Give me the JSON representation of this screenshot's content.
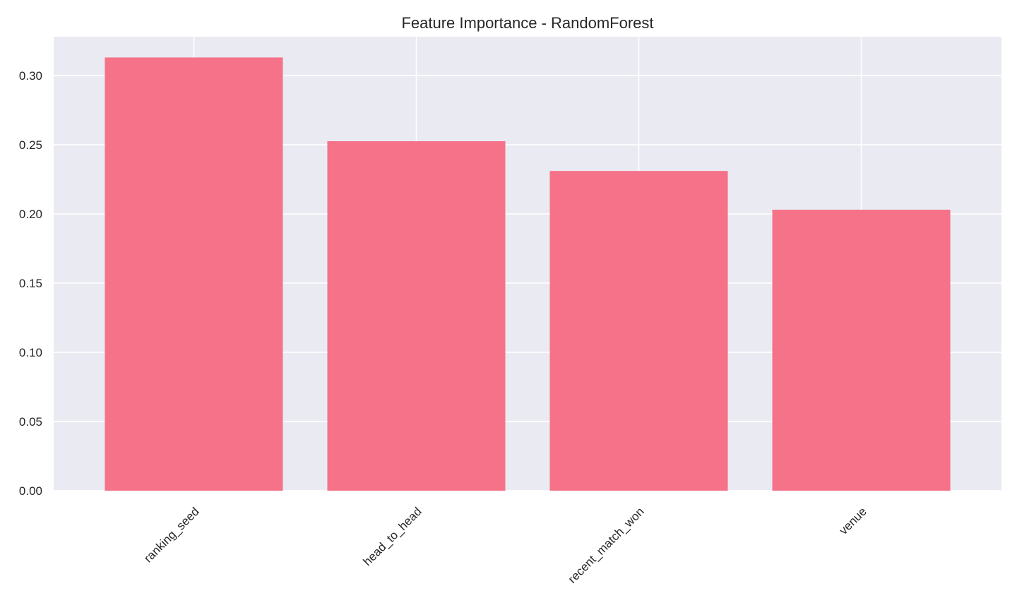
{
  "chart_data": {
    "type": "bar",
    "title": "Feature Importance - RandomForest",
    "xlabel": "",
    "ylabel": "",
    "categories": [
      "ranking_seed",
      "head_to_head",
      "recent_match_won",
      "venue"
    ],
    "values": [
      0.313,
      0.2525,
      0.231,
      0.203
    ],
    "ylim": [
      0.0,
      0.328
    ],
    "yticks": [
      0.0,
      0.05,
      0.1,
      0.15,
      0.2,
      0.25,
      0.3
    ],
    "ytick_labels": [
      "0.00",
      "0.05",
      "0.10",
      "0.15",
      "0.20",
      "0.25",
      "0.30"
    ],
    "xtick_rotation": -45,
    "grid": true,
    "legend": "none",
    "colors": {
      "bar": "#f57289",
      "plot_background": "#eaeaf2",
      "grid": "#ffffff",
      "text": "#262626"
    }
  }
}
